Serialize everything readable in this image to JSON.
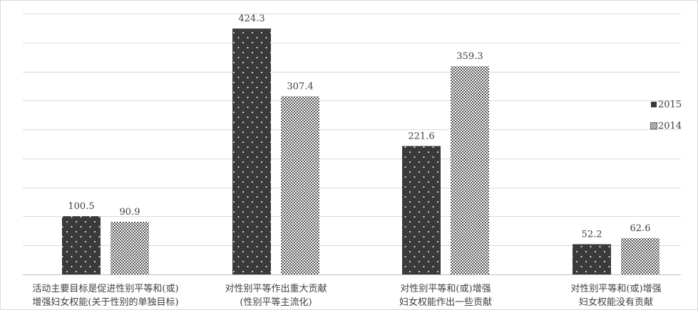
{
  "chart_data": {
    "type": "bar",
    "categories": [
      [
        "活动主要目标是促进性别平等和(或)",
        "增强妇女权能(关于性别的单独目标)"
      ],
      [
        "对性别平等作出重大贡献",
        "(性别平等主流化)"
      ],
      [
        "对性别平等和(或)增强",
        "妇女权能作出一些贡献"
      ],
      [
        "对性别平等和(或)增强",
        "妇女权能没有贡献"
      ]
    ],
    "series": [
      {
        "name": "2015",
        "values": [
          100.5,
          424.3,
          221.6,
          52.2
        ],
        "value_labels": [
          "100.5",
          "424.3",
          "221.6",
          "52.2"
        ]
      },
      {
        "name": "2014",
        "values": [
          90.9,
          307.4,
          359.3,
          62.6
        ],
        "value_labels": [
          "90.9",
          "307.4",
          "359.3",
          "62.6"
        ]
      }
    ],
    "ylim": [
      0,
      450
    ],
    "y_gridline_step": 50,
    "grid": true,
    "legend_position": "right",
    "title": "",
    "xlabel": "",
    "ylabel": ""
  },
  "colors": {
    "bar_2015": "#3a3a3a",
    "bar_2014_pattern": "#555555",
    "gridline": "#d9d9d9",
    "text": "#404040"
  }
}
